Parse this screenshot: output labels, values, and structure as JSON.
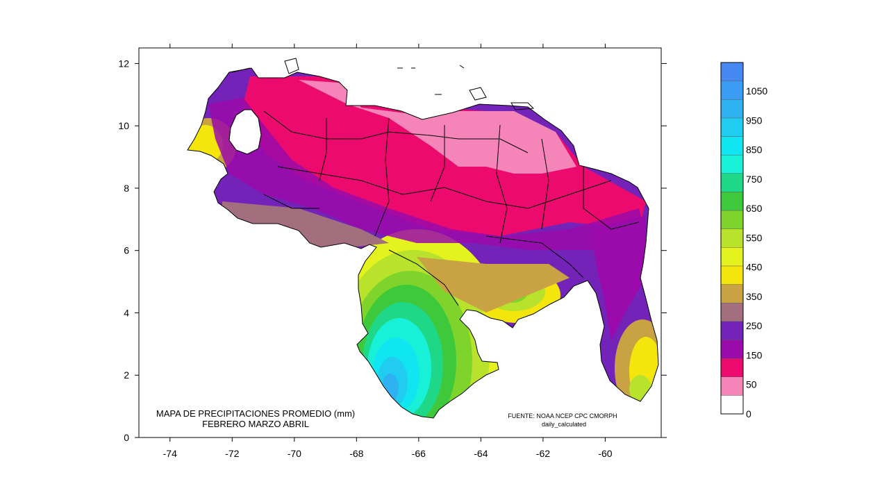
{
  "map": {
    "title_line1": "MAPA DE PRECIPITACIONES PROMEDIO (mm)",
    "title_line2": "FEBRERO MARZO ABRIL",
    "source_line1": "FUENTE: NOAA NCEP CPC CMORPH",
    "source_line2": "daily_calculated"
  },
  "chart_data": {
    "type": "heatmap",
    "region": "Venezuela",
    "x_ticks": [
      "-74",
      "-72",
      "-70",
      "-68",
      "-66",
      "-64",
      "-62",
      "-60"
    ],
    "y_ticks": [
      "0",
      "2",
      "4",
      "6",
      "8",
      "10",
      "12"
    ],
    "xlim": [
      -75,
      -58.2
    ],
    "ylim": [
      0,
      12.5
    ],
    "legend_labels": [
      "0",
      "50",
      "150",
      "250",
      "350",
      "450",
      "550",
      "650",
      "750",
      "850",
      "950",
      "1050"
    ],
    "legend_colors": [
      "#ffffff",
      "#f584b8",
      "#ec0a6e",
      "#9b0aaa",
      "#7423b8",
      "#a36e7e",
      "#c9a244",
      "#f4e60c",
      "#e4f21e",
      "#b8e22c",
      "#7fd42c",
      "#3ec83c",
      "#1ed888",
      "#18f0d8",
      "#10e6f2",
      "#20ccf0",
      "#2eb2f2",
      "#3a9cf2",
      "#4688f2"
    ]
  }
}
